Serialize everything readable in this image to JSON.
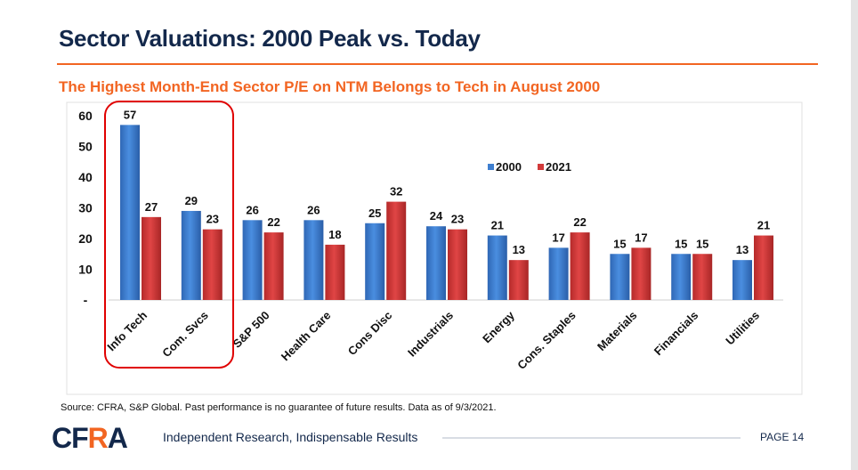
{
  "header": {
    "title": "Sector Valuations: 2000 Peak vs. Today",
    "subtitle": "The Highest Month-End Sector P/E on NTM Belongs to Tech in August 2000"
  },
  "chart_data": {
    "type": "bar",
    "categories": [
      "Info Tech",
      "Com. Svcs",
      "S&P 500",
      "Health Care",
      "Cons Disc",
      "Industrials",
      "Energy",
      "Cons. Staples",
      "Materials",
      "Financials",
      "Utilities"
    ],
    "series": [
      {
        "name": "2000",
        "color": "#3f7fd0",
        "values": [
          57,
          29,
          26,
          26,
          25,
          24,
          21,
          17,
          15,
          15,
          13
        ]
      },
      {
        "name": "2021",
        "color": "#d23a3a",
        "values": [
          27,
          23,
          22,
          18,
          32,
          23,
          13,
          22,
          17,
          15,
          21
        ]
      }
    ],
    "ylim": [
      0,
      60
    ],
    "yticks": [
      0,
      10,
      20,
      30,
      40,
      50,
      60
    ],
    "ytick_labels": [
      "-",
      "10",
      "20",
      "30",
      "40",
      "50",
      "60"
    ],
    "legend_position": "top-right",
    "grid": false,
    "highlight": {
      "categories": [
        "Info Tech",
        "Com. Svcs"
      ],
      "color": "#e00000"
    }
  },
  "footer": {
    "source": "Source: CFRA, S&P Global. Past performance is no guarantee of future results. Data as of 9/3/2021.",
    "logo": "CFRA",
    "tagline": "Independent Research, Indispensable Results",
    "page": "PAGE 14"
  }
}
